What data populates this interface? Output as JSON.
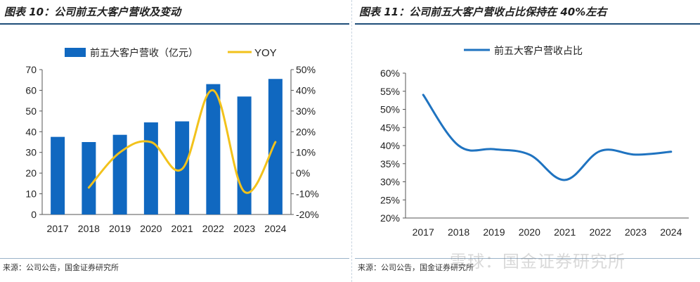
{
  "chart_data": [
    {
      "type": "bar+line",
      "title": "图表 10：公司前五大客户营收及变动",
      "categories": [
        "2017",
        "2018",
        "2019",
        "2020",
        "2021",
        "2022",
        "2023",
        "2024"
      ],
      "series": [
        {
          "name": "前五大客户营收（亿元）",
          "type": "bar",
          "axis": "left",
          "values": [
            37.5,
            35,
            38.5,
            44.5,
            45,
            63,
            57,
            65.5
          ]
        },
        {
          "name": "YOY",
          "type": "line",
          "axis": "right",
          "values": [
            null,
            -7,
            10,
            15,
            2,
            40,
            -9,
            15
          ]
        }
      ],
      "y_left": {
        "min": 0,
        "max": 70,
        "ticks": [
          "0",
          "10",
          "20",
          "30",
          "40",
          "50",
          "60",
          "70"
        ]
      },
      "y_right": {
        "min": -20,
        "max": 50,
        "ticks": [
          "-20%",
          "-10%",
          "0%",
          "10%",
          "20%",
          "30%",
          "40%",
          "50%"
        ]
      },
      "legend": "top",
      "source": "来源：公司公告，国金证券研究所"
    },
    {
      "type": "line",
      "title": "图表 11：公司前五大客户营收占比保持在 40%左右",
      "categories": [
        "2017",
        "2018",
        "2019",
        "2020",
        "2021",
        "2022",
        "2023",
        "2024"
      ],
      "series": [
        {
          "name": "前五大客户营收占比",
          "values": [
            54,
            40,
            39,
            37.5,
            30.5,
            38.5,
            37.5,
            38.3
          ]
        }
      ],
      "y": {
        "min": 20,
        "max": 60,
        "ticks": [
          "20%",
          "25%",
          "30%",
          "35%",
          "40%",
          "45%",
          "50%",
          "55%",
          "60%"
        ]
      },
      "legend": "top",
      "source": "来源：公司公告，国金证券研究所"
    }
  ],
  "colors": {
    "bar": "#1068c0",
    "yoy": "#f2c21b",
    "share": "#1f73c0"
  },
  "watermark": "雪球：国金证券研究所"
}
